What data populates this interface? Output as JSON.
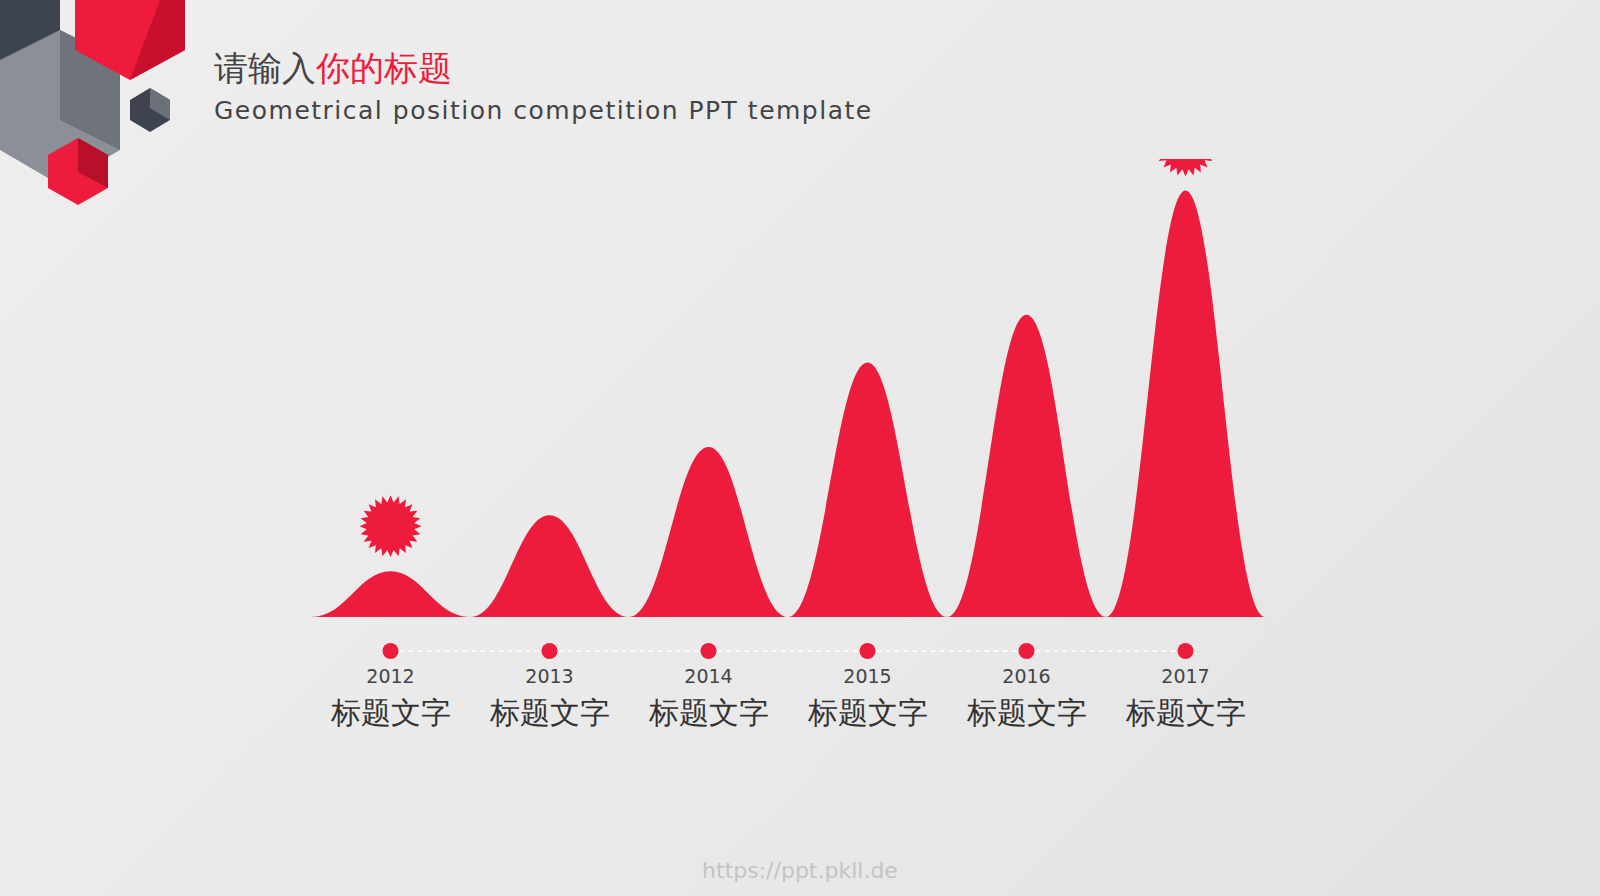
{
  "chart_data": {
    "type": "bar",
    "title": "请输入你的标题",
    "subtitle": "Geometrical position competition PPT template",
    "categories": [
      "2012",
      "2013",
      "2014",
      "2015",
      "2016",
      "2017"
    ],
    "category_labels": [
      "标题文字",
      "标题文字",
      "标题文字",
      "标题文字",
      "标题文字",
      "标题文字"
    ],
    "values": [
      45,
      100,
      167,
      250,
      297,
      419
    ],
    "color": "#ee1c3c",
    "ylim": [
      0,
      450
    ],
    "grid": false,
    "tick_labels": false
  },
  "footer": "https://ppt.pkll.de"
}
